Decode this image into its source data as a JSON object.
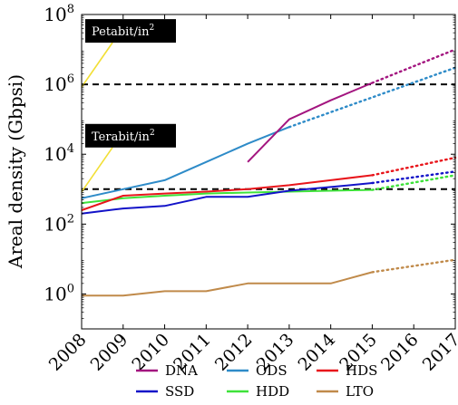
{
  "chart_data": {
    "type": "line",
    "xlabel": "",
    "ylabel": "Areal density (Gbpsi)",
    "y_scale": "log",
    "xlim": [
      2008,
      2017
    ],
    "ylim_log10": [
      -1,
      8
    ],
    "x_ticks": [
      "2008",
      "2009",
      "2010",
      "2011",
      "2012",
      "2013",
      "2014",
      "2015",
      "2016",
      "2017"
    ],
    "y_ticks": [
      {
        "log10": 0,
        "base": "10",
        "exp": "0"
      },
      {
        "log10": 2,
        "base": "10",
        "exp": "2"
      },
      {
        "log10": 4,
        "base": "10",
        "exp": "4"
      },
      {
        "log10": 6,
        "base": "10",
        "exp": "6"
      },
      {
        "log10": 8,
        "base": "10",
        "exp": "8"
      }
    ],
    "grid": false,
    "legend_position": "bottom",
    "reference_lines": [
      {
        "label_base": "Petabit/in",
        "label_exp": "2",
        "value": 1000000,
        "color": "#000000"
      },
      {
        "label_base": "Terabit/in",
        "label_exp": "2",
        "value": 1000,
        "color": "#000000"
      }
    ],
    "series": [
      {
        "name": "DNA",
        "color": "#a3157f",
        "solid": [
          [
            2012,
            6000
          ],
          [
            2013,
            100000
          ],
          [
            2014,
            350000
          ],
          [
            2015,
            1100000
          ]
        ],
        "projected": [
          [
            2015,
            1100000
          ],
          [
            2017,
            10000000
          ]
        ]
      },
      {
        "name": "ODS",
        "color": "#2e8bc8",
        "solid": [
          [
            2008,
            550
          ],
          [
            2009,
            1000
          ],
          [
            2010,
            1800
          ],
          [
            2011,
            6000
          ],
          [
            2012,
            20000
          ],
          [
            2013,
            60000
          ]
        ],
        "projected": [
          [
            2013,
            60000
          ],
          [
            2017,
            3000000
          ]
        ]
      },
      {
        "name": "HDS",
        "color": "#e8151b",
        "solid": [
          [
            2008,
            250
          ],
          [
            2009,
            650
          ],
          [
            2010,
            750
          ],
          [
            2011,
            850
          ],
          [
            2012,
            1000
          ],
          [
            2013,
            1300
          ],
          [
            2014,
            1800
          ],
          [
            2015,
            2500
          ]
        ],
        "projected": [
          [
            2015,
            2500
          ],
          [
            2017,
            8000
          ]
        ]
      },
      {
        "name": "SSD",
        "color": "#1212c8",
        "solid": [
          [
            2008,
            200
          ],
          [
            2009,
            280
          ],
          [
            2010,
            330
          ],
          [
            2011,
            600
          ],
          [
            2012,
            600
          ],
          [
            2013,
            900
          ],
          [
            2014,
            1150
          ],
          [
            2015,
            1500
          ]
        ],
        "projected": [
          [
            2015,
            1500
          ],
          [
            2017,
            3200
          ]
        ]
      },
      {
        "name": "HDD",
        "color": "#3ee23a",
        "solid": [
          [
            2008,
            400
          ],
          [
            2009,
            550
          ],
          [
            2010,
            650
          ],
          [
            2011,
            750
          ],
          [
            2012,
            800
          ],
          [
            2013,
            850
          ],
          [
            2014,
            900
          ],
          [
            2015,
            950
          ]
        ],
        "projected": [
          [
            2015,
            950
          ],
          [
            2017,
            2500
          ]
        ]
      },
      {
        "name": "LTO",
        "color": "#c08a4a",
        "solid": [
          [
            2008,
            0.9
          ],
          [
            2009,
            0.9
          ],
          [
            2010,
            1.2
          ],
          [
            2011,
            1.2
          ],
          [
            2012,
            2
          ],
          [
            2013,
            2
          ],
          [
            2014,
            2
          ],
          [
            2015,
            4.2
          ]
        ],
        "projected": [
          [
            2015,
            4.2
          ],
          [
            2017,
            9.5
          ]
        ]
      }
    ]
  }
}
